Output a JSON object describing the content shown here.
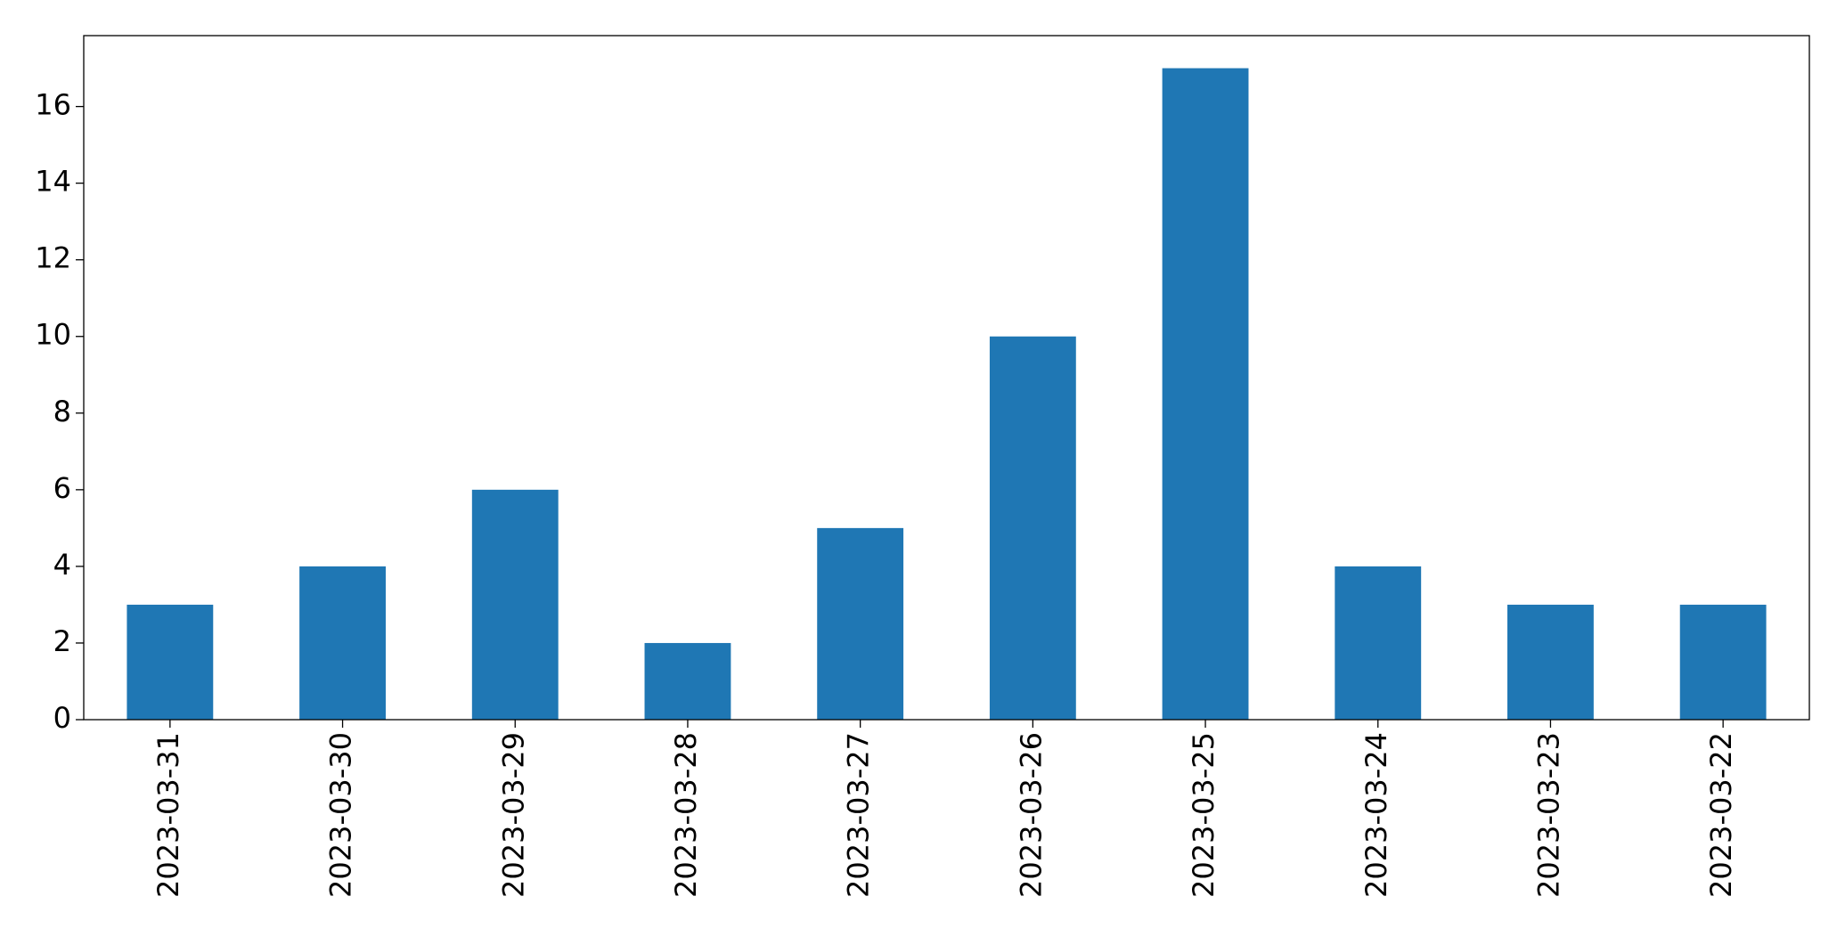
{
  "chart_data": {
    "type": "bar",
    "categories": [
      "2023-03-31",
      "2023-03-30",
      "2023-03-29",
      "2023-03-28",
      "2023-03-27",
      "2023-03-26",
      "2023-03-25",
      "2023-03-24",
      "2023-03-23",
      "2023-03-22"
    ],
    "values": [
      3,
      4,
      6,
      2,
      5,
      10,
      17,
      4,
      3,
      3
    ],
    "color": "#1f77b4",
    "ylim": [
      0,
      17.85
    ],
    "yticks": [
      0,
      2,
      4,
      6,
      8,
      10,
      12,
      14,
      16
    ],
    "grid": false
  }
}
